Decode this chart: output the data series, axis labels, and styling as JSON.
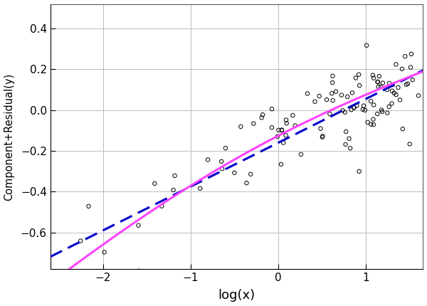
{
  "title": "",
  "xlabel": "log(x)",
  "ylabel": "Component+Residual(y)",
  "xlim": [
    -2.6,
    1.65
  ],
  "ylim": [
    -0.78,
    0.52
  ],
  "xticks": [
    -2,
    -1,
    0,
    1
  ],
  "yticks": [
    -0.6,
    -0.4,
    -0.2,
    0.0,
    0.2,
    0.4
  ],
  "scatter_facecolor": "none",
  "scatter_edgecolor": "black",
  "line_color_dashed": "#0000CC",
  "line_color_solid": "#FF44FF",
  "background_color": "#ffffff",
  "grid_color": "#bbbbbb",
  "seed": 99,
  "linear_slope": 0.215,
  "linear_intercept": -0.16,
  "noise_std": 0.11
}
